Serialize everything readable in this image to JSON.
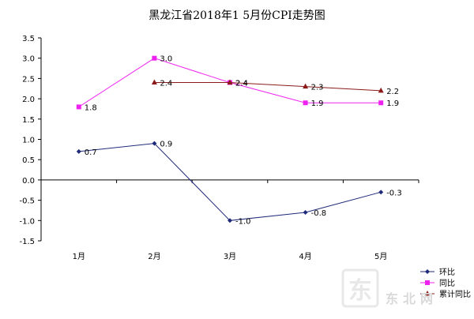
{
  "chart_data": {
    "type": "line",
    "title": "黑龙江省2018年1 5月份CPI走势图",
    "xlabel": "",
    "ylabel": "",
    "categories": [
      "1月",
      "2月",
      "3月",
      "4月",
      "5月"
    ],
    "ylim": [
      -1.5,
      3.5
    ],
    "yticks": [
      "3.5",
      "3.0",
      "2.5",
      "2.0",
      "1.5",
      "1.0",
      "0.5",
      "0.0",
      "-0.5",
      "-1.0",
      "-1.5"
    ],
    "grid": false,
    "legend_position": "right",
    "series": [
      {
        "name": "环比",
        "color": "#1f2a7a",
        "marker": "diamond",
        "values": [
          0.7,
          0.9,
          -1.0,
          -0.8,
          -0.3
        ],
        "labels": [
          "0.7",
          "0.9",
          "-1.0",
          "-0.8",
          "-0.3"
        ]
      },
      {
        "name": "同比",
        "color": "#ee22ee",
        "marker": "square",
        "values": [
          1.8,
          3.0,
          2.4,
          1.9,
          1.9
        ],
        "labels": [
          "1.8",
          "3.0",
          "2.4",
          "1.9",
          "1.9"
        ]
      },
      {
        "name": "累计同比",
        "color": "#8b1a1a",
        "marker": "triangle",
        "values": [
          null,
          2.4,
          2.4,
          2.3,
          2.2
        ],
        "labels": [
          null,
          "2.4",
          "2.4",
          "2.3",
          "2.2"
        ]
      }
    ]
  },
  "watermark": {
    "logo_char": "东",
    "text": "东北网"
  }
}
